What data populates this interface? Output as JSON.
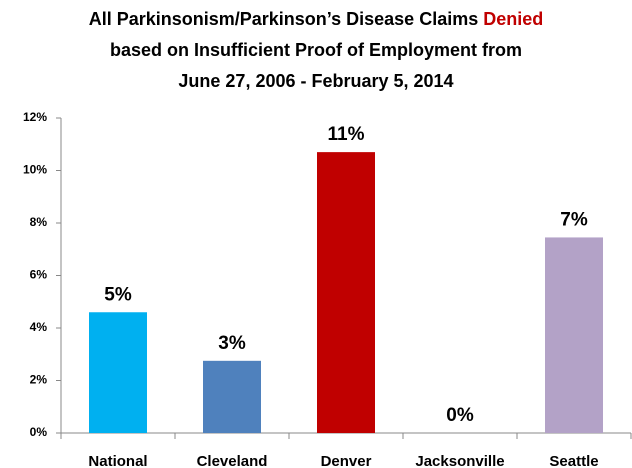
{
  "chart_data": {
    "type": "bar",
    "title": [
      "All Parkinsonism/Parkinson’s Disease Claims",
      "Denied",
      "based on Insufficient Proof of Employment from",
      "June 27, 2006 - February 5, 2014"
    ],
    "categories": [
      "National",
      "Cleveland",
      "Denver",
      "Jacksonville",
      "Seattle"
    ],
    "values": [
      4.6,
      2.75,
      10.7,
      0,
      7.45
    ],
    "value_labels": [
      "5%",
      "3%",
      "11%",
      "0%",
      "7%"
    ],
    "colors": [
      "#00b0f0",
      "#4f81bd",
      "#c00000",
      "#8064a2",
      "#b3a2c7"
    ],
    "ylim": [
      0,
      12
    ],
    "yticks": [
      {
        "value": 0,
        "label": "0%"
      },
      {
        "value": 2,
        "label": "2%"
      },
      {
        "value": 4,
        "label": "4%"
      },
      {
        "value": 6,
        "label": "6%"
      },
      {
        "value": 8,
        "label": "8%"
      },
      {
        "value": 10,
        "label": "10%"
      },
      {
        "value": 12,
        "label": "12%"
      }
    ],
    "grid": false
  }
}
